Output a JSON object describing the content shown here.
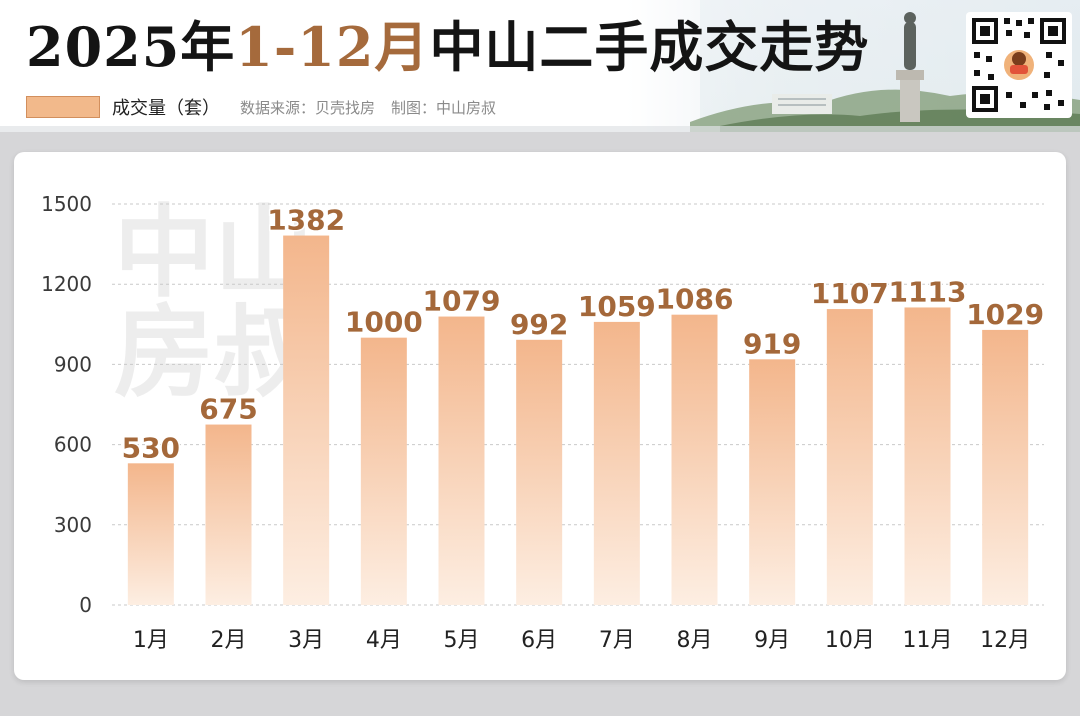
{
  "header": {
    "title_part1": "2025年",
    "title_part2": "1-12月",
    "title_part3": "中山二手成交走势",
    "legend_label": "成交量（套）",
    "source": "数据来源：贝壳找房",
    "maker": "制图：中山房叔"
  },
  "watermark": {
    "line1": "中山",
    "line2": "房叔"
  },
  "colors": {
    "bar_top": "#f3b68c",
    "bar_bottom": "#fdeee2",
    "value_label": "#a4683a",
    "title_highlight": "#a56a3c",
    "grid": "#c9c9c9",
    "axis_text": "#3a3a3a"
  },
  "chart_data": {
    "type": "bar",
    "categories": [
      "1月",
      "2月",
      "3月",
      "4月",
      "5月",
      "6月",
      "7月",
      "8月",
      "9月",
      "10月",
      "11月",
      "12月"
    ],
    "values": [
      530,
      675,
      1382,
      1000,
      1079,
      992,
      1059,
      1086,
      919,
      1107,
      1113,
      1029
    ],
    "yticks": [
      "0",
      "300",
      "600",
      "900",
      "1200",
      "1500"
    ],
    "ylim": [
      0,
      1500
    ],
    "grid": true,
    "legend": "top-left"
  }
}
